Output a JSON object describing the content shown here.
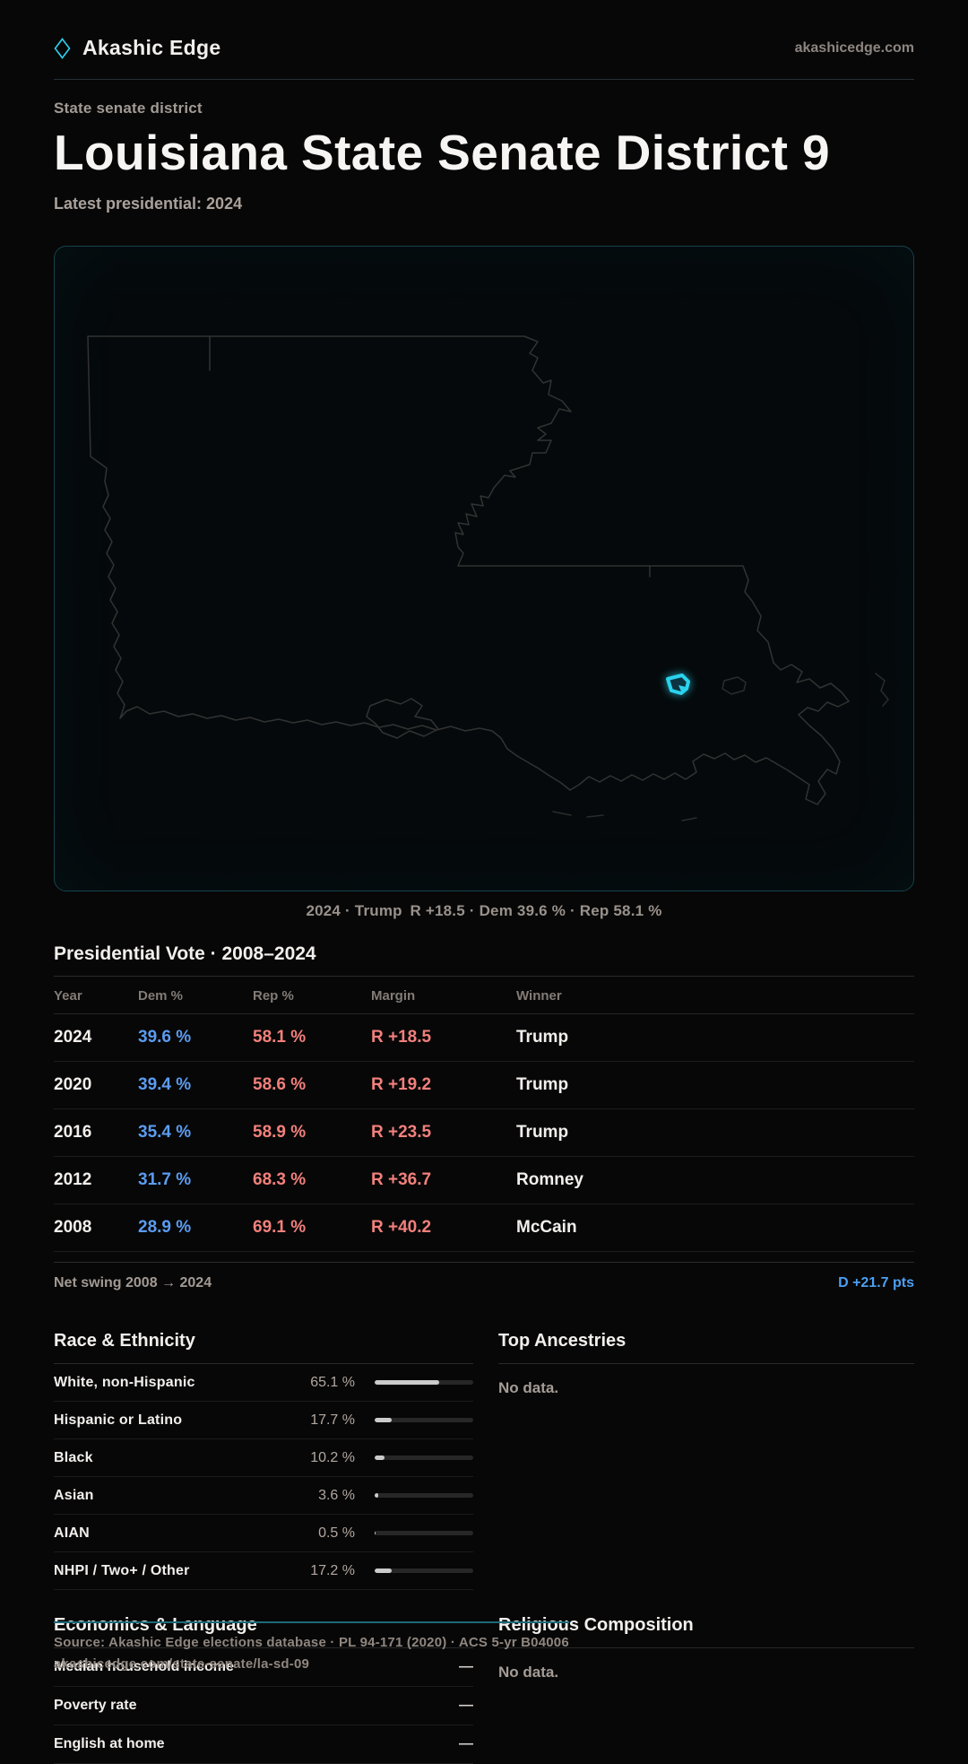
{
  "brand": {
    "name": "Akashic Edge",
    "domain": "akashicedge.com"
  },
  "hero": {
    "kicker": "State senate district",
    "title": "Louisiana State Senate District 9",
    "subtitle": "Latest presidential: 2024"
  },
  "map": {
    "caption": "2024 · Trump R +18.5 · Dem 39.6 % · Rep 58.1 %"
  },
  "pres_table": {
    "title": "Presidential Vote · 2008–2024",
    "columns": [
      "Year",
      "Dem %",
      "Rep %",
      "Margin",
      "Winner"
    ],
    "rows": [
      {
        "year": "2024",
        "dem": "39.6 %",
        "rep": "58.1 %",
        "margin": "R +18.5",
        "winner": "Trump"
      },
      {
        "year": "2020",
        "dem": "39.4 %",
        "rep": "58.6 %",
        "margin": "R +19.2",
        "winner": "Trump"
      },
      {
        "year": "2016",
        "dem": "35.4 %",
        "rep": "58.9 %",
        "margin": "R +23.5",
        "winner": "Trump"
      },
      {
        "year": "2012",
        "dem": "31.7 %",
        "rep": "68.3 %",
        "margin": "R +36.7",
        "winner": "Romney"
      },
      {
        "year": "2008",
        "dem": "28.9 %",
        "rep": "69.1 %",
        "margin": "R +40.2",
        "winner": "McCain"
      }
    ],
    "net_swing_label": "Net swing 2008 → 2024",
    "net_swing_value": "D +21.7 pts"
  },
  "race": {
    "title": "Race & Ethnicity",
    "rows": [
      {
        "label": "White, non-Hispanic",
        "value": "65.1 %",
        "pct": 65.1
      },
      {
        "label": "Hispanic or Latino",
        "value": "17.7 %",
        "pct": 17.7
      },
      {
        "label": "Black",
        "value": "10.2 %",
        "pct": 10.2
      },
      {
        "label": "Asian",
        "value": "3.6 %",
        "pct": 3.6
      },
      {
        "label": "AIAN",
        "value": "0.5 %",
        "pct": 0.5
      },
      {
        "label": "NHPI / Two+ / Other",
        "value": "17.2 %",
        "pct": 17.2
      }
    ]
  },
  "ancestries": {
    "title": "Top Ancestries",
    "empty": "No data."
  },
  "economics": {
    "title": "Economics & Language",
    "rows": [
      {
        "label": "Median household income",
        "value": "—"
      },
      {
        "label": "Poverty rate",
        "value": "—"
      },
      {
        "label": "English at home",
        "value": "—"
      }
    ]
  },
  "religion": {
    "title": "Religious Composition",
    "empty": "No data."
  },
  "footer": {
    "line1": "Source: Akashic Edge elections database · PL 94-171 (2020) · ACS 5-yr B04006",
    "line2": "akashicedge.com/state-senate/la-sd-09"
  },
  "colors": {
    "accent": "#2bd3ee",
    "dem_blue": "#5b9cf0",
    "rep_red": "#f2807c"
  }
}
